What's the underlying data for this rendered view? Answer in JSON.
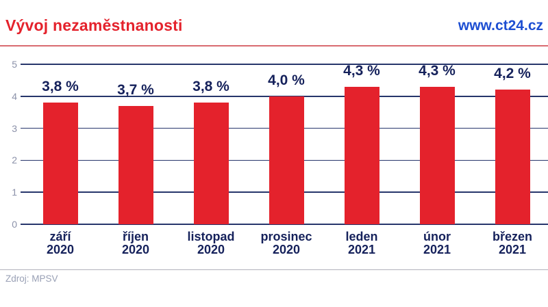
{
  "header": {
    "title": "Vývoj nezaměstnanosti",
    "website": "www.ct24.cz"
  },
  "footer": {
    "source": "Zdroj: MPSV"
  },
  "colors": {
    "red": "#e4222c",
    "soft-red": "#d96a70",
    "blue": "#1d4ed2",
    "navy": "#15215b",
    "grid": "#26356b",
    "tick": "#8b91a9",
    "divider": "#b1b1bb",
    "muted": "#99a0b5"
  },
  "chart_data": {
    "type": "bar",
    "title": "Vývoj nezaměstnanosti",
    "xlabel": "",
    "ylabel": "",
    "categories": [
      [
        "září",
        "2020"
      ],
      [
        "říjen",
        "2020"
      ],
      [
        "listopad",
        "2020"
      ],
      [
        "prosinec",
        "2020"
      ],
      [
        "leden",
        "2021"
      ],
      [
        "únor",
        "2021"
      ],
      [
        "březen",
        "2021"
      ]
    ],
    "values": [
      3.8,
      3.7,
      3.8,
      4.0,
      4.3,
      4.3,
      4.2
    ],
    "value_labels": [
      "3,8 %",
      "3,7 %",
      "3,8 %",
      "4,0 %",
      "4,3 %",
      "4,3 %",
      "4,2 %"
    ],
    "unit": "%",
    "ylim": [
      0,
      5
    ],
    "yticks": [
      0,
      1,
      2,
      3,
      4,
      5
    ],
    "grid": true,
    "legend": false,
    "bar_color": "#e4222c"
  }
}
